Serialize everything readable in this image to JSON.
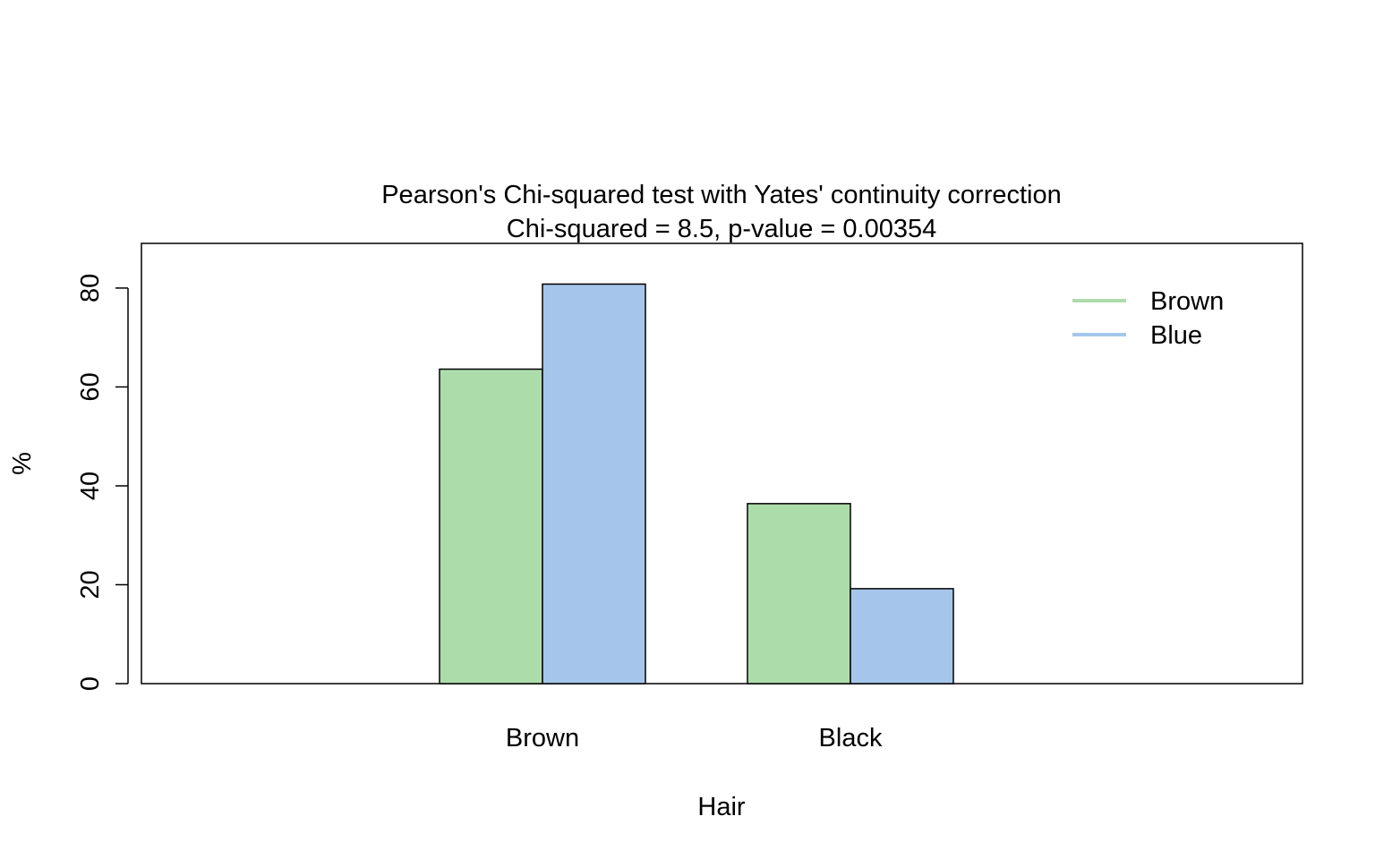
{
  "chart_data": {
    "type": "bar",
    "title": "Pearson's Chi-squared test with Yates' continuity correction",
    "subtitle": "Chi-squared = 8.5, p-value = 0.00354",
    "xlabel": "Hair",
    "ylabel": "%",
    "categories": [
      "Brown",
      "Black"
    ],
    "series": [
      {
        "name": "Brown",
        "color": "#addcab",
        "values": [
          63.6,
          36.4
        ]
      },
      {
        "name": "Blue",
        "color": "#a5c6ea",
        "values": [
          80.8,
          19.2
        ]
      }
    ],
    "ylim": [
      0,
      88.9
    ],
    "yticks": [
      0,
      20,
      40,
      60,
      80
    ],
    "ytick_labels": [
      "0",
      "20",
      "40",
      "60",
      "80"
    ],
    "grid": false,
    "legend_position": "top-right"
  }
}
